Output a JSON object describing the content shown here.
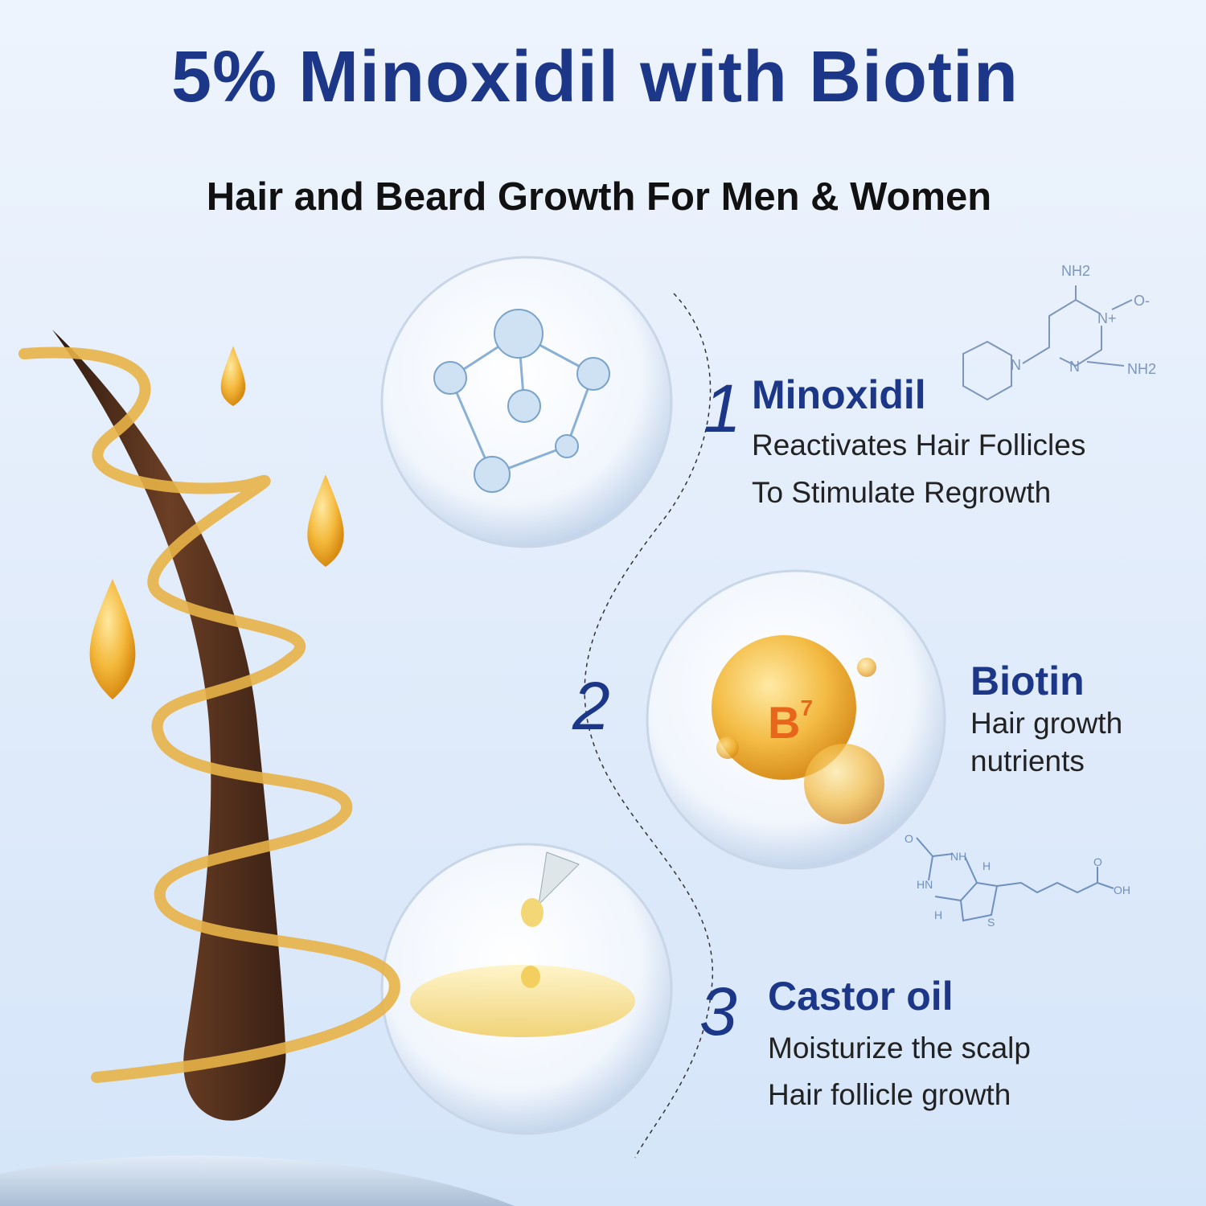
{
  "title": "5% Minoxidil with Biotin",
  "subtitle": "Hair and Beard Growth For Men & Women",
  "ingredients": [
    {
      "number": "1",
      "name": "Minoxidil",
      "lines": [
        "Reactivates Hair Follicles",
        "To Stimulate Regrowth"
      ]
    },
    {
      "number": "2",
      "name": "Biotin",
      "lines": [
        "Hair growth",
        "nutrients"
      ]
    },
    {
      "number": "3",
      "name": "Castor oil",
      "lines": [
        "Moisturize the scalp",
        "Hair follicle growth"
      ]
    }
  ],
  "biotin_badge": {
    "letter": "B",
    "sup": "7"
  },
  "minoxidil_structure": {
    "labels": [
      "NH2",
      "N+",
      "O-",
      "N",
      "NH2",
      "N"
    ]
  },
  "biotin_structure": {
    "labels": [
      "O",
      "NH",
      "HN",
      "H",
      "H",
      "S",
      "O",
      "OH"
    ]
  },
  "colors": {
    "title": "#1c3788",
    "accent_gold": "#e8a51c",
    "hair": "#5a3320",
    "background": "#e3edfb"
  }
}
